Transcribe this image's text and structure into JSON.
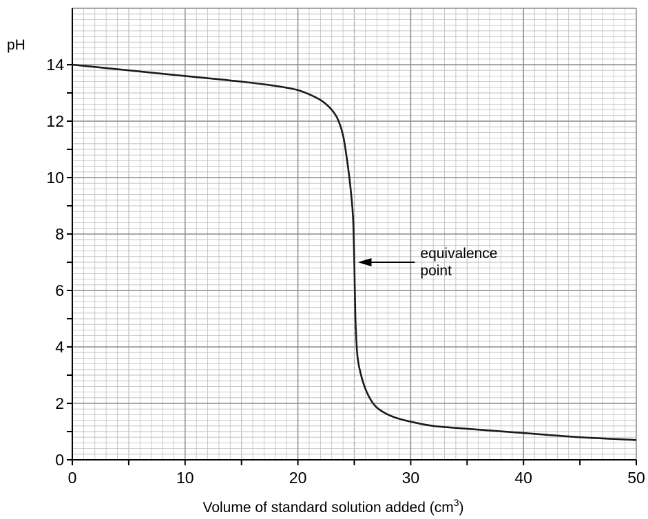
{
  "chart_data": {
    "type": "line",
    "title": "",
    "ylabel": "pH",
    "xlabel": "Volume of standard solution added (cm",
    "xlabel_sup": "3",
    "xlabel_close": ")",
    "xlim": [
      0,
      50
    ],
    "ylim": [
      0,
      16
    ],
    "xticks": [
      0,
      10,
      20,
      30,
      40,
      50
    ],
    "yticks": [
      0,
      2,
      4,
      6,
      8,
      10,
      12,
      14
    ],
    "grid": true,
    "series": [
      {
        "x": [
          0,
          5,
          10,
          15,
          18,
          20,
          21,
          22,
          22.5,
          23,
          23.5,
          24,
          24.4,
          24.7,
          24.9,
          25.0,
          25.1,
          25.3,
          25.6,
          26,
          26.5,
          27,
          28,
          29,
          30,
          32,
          35,
          40,
          45,
          50
        ],
        "y": [
          14.0,
          13.8,
          13.6,
          13.4,
          13.25,
          13.1,
          12.95,
          12.75,
          12.6,
          12.4,
          12.1,
          11.5,
          10.5,
          9.5,
          8.5,
          7.0,
          5.0,
          3.6,
          3.0,
          2.5,
          2.1,
          1.85,
          1.6,
          1.45,
          1.35,
          1.2,
          1.1,
          0.95,
          0.8,
          0.7
        ],
        "color": "#1a1a1a"
      }
    ],
    "vertical_line": {
      "x": 25,
      "style": "dashed"
    },
    "annotations": [
      {
        "text_line1": "equivalence",
        "text_line2": "point",
        "target_x": 25,
        "target_y": 7
      }
    ]
  }
}
